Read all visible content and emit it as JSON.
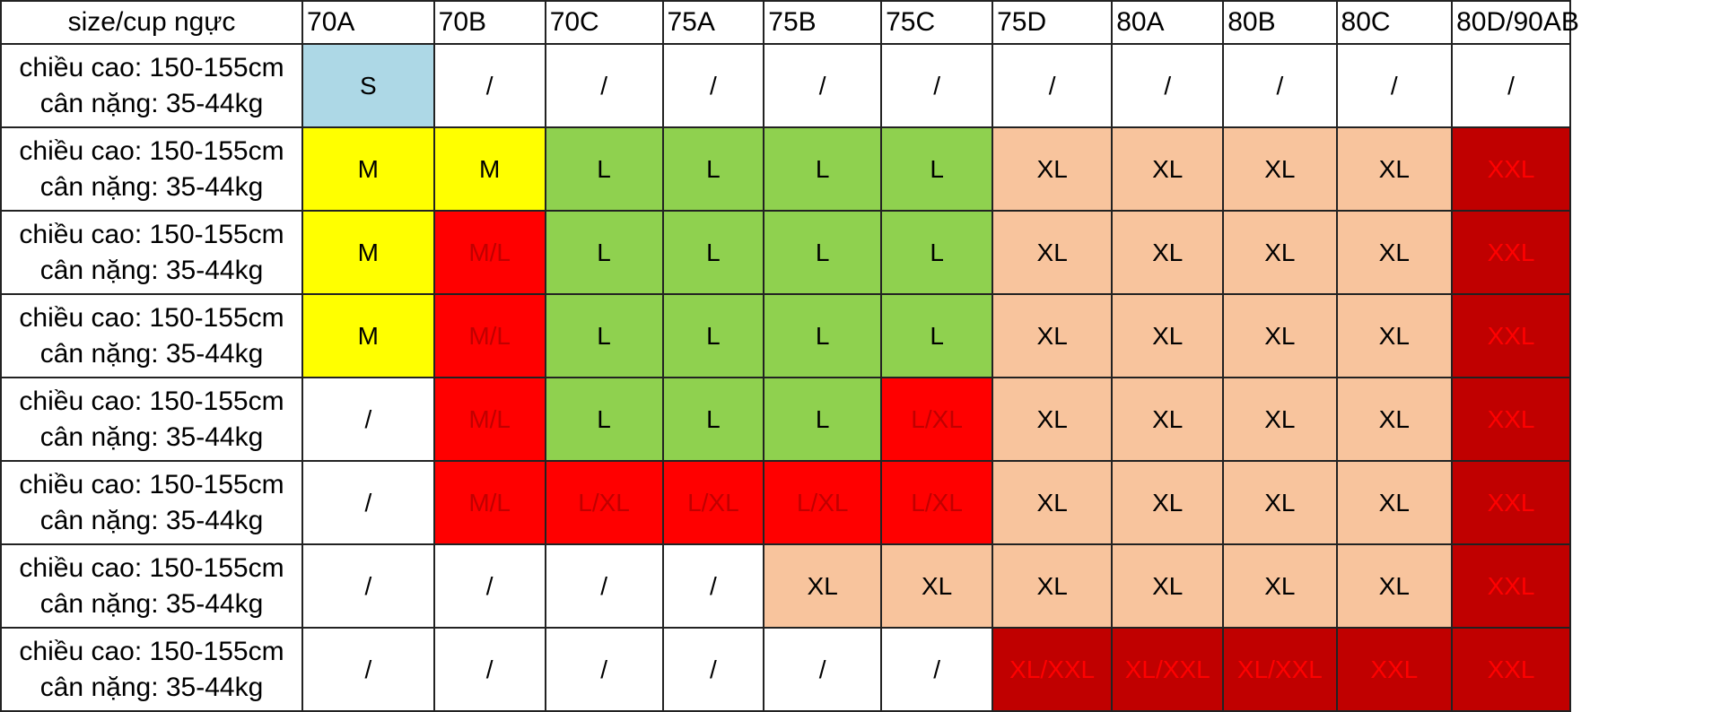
{
  "table": {
    "corner_header": "size/cup ngực",
    "columns": [
      "70A",
      "70B",
      "70C",
      "75A",
      "75B",
      "75C",
      "75D",
      "80A",
      "80B",
      "80C",
      "80D/90AB"
    ],
    "rows": [
      {
        "height_label": "chiều cao: 150-155cm",
        "weight_label": "cân nặng: 35-44kg",
        "cells": [
          "S",
          "/",
          "/",
          "/",
          "/",
          "/",
          "/",
          "/",
          "/",
          "/",
          "/"
        ]
      },
      {
        "height_label": "chiều cao: 150-155cm",
        "weight_label": "cân nặng: 35-44kg",
        "cells": [
          "M",
          "M",
          "L",
          "L",
          "L",
          "L",
          "XL",
          "XL",
          "XL",
          "XL",
          "XXL"
        ]
      },
      {
        "height_label": "chiều cao: 150-155cm",
        "weight_label": "cân nặng: 35-44kg",
        "cells": [
          "M",
          "M/L",
          "L",
          "L",
          "L",
          "L",
          "XL",
          "XL",
          "XL",
          "XL",
          "XXL"
        ]
      },
      {
        "height_label": "chiều cao: 150-155cm",
        "weight_label": "cân nặng: 35-44kg",
        "cells": [
          "M",
          "M/L",
          "L",
          "L",
          "L",
          "L",
          "XL",
          "XL",
          "XL",
          "XL",
          "XXL"
        ]
      },
      {
        "height_label": "chiều cao: 150-155cm",
        "weight_label": "cân nặng: 35-44kg",
        "cells": [
          "/",
          "M/L",
          "L",
          "L",
          "L",
          "L/XL",
          "XL",
          "XL",
          "XL",
          "XL",
          "XXL"
        ]
      },
      {
        "height_label": "chiều cao: 150-155cm",
        "weight_label": "cân nặng: 35-44kg",
        "cells": [
          "/",
          "M/L",
          "L/XL",
          "L/XL",
          "L/XL",
          "L/XL",
          "XL",
          "XL",
          "XL",
          "XL",
          "XXL"
        ]
      },
      {
        "height_label": "chiều cao: 150-155cm",
        "weight_label": "cân nặng: 35-44kg",
        "cells": [
          "/",
          "/",
          "/",
          "/",
          "XL",
          "XL",
          "XL",
          "XL",
          "XL",
          "XL",
          "XXL"
        ]
      },
      {
        "height_label": "chiều cao: 150-155cm",
        "weight_label": "cân nặng: 35-44kg",
        "cells": [
          "/",
          "/",
          "/",
          "/",
          "/",
          "/",
          "XL/XXL",
          "XL/XXL",
          "XL/XXL",
          "XXL",
          "XXL"
        ]
      }
    ]
  },
  "size_colors": {
    "S": {
      "bg": "#add8e6",
      "fg": "#000000"
    },
    "M": {
      "bg": "#ffff00",
      "fg": "#000000"
    },
    "M/L": {
      "bg": "#ff0000",
      "fg": "#c00000"
    },
    "L": {
      "bg": "#8fd14f",
      "fg": "#000000"
    },
    "L/XL": {
      "bg": "#ff0000",
      "fg": "#c00000"
    },
    "XL": {
      "bg": "#f8c49d",
      "fg": "#000000"
    },
    "XL/XXL": {
      "bg": "#c00000",
      "fg": "#ff0000"
    },
    "XXL": {
      "bg": "#c00000",
      "fg": "#ff0000"
    },
    "/": {
      "bg": "#ffffff",
      "fg": "#000000"
    }
  },
  "colors": {
    "grid_line": "#222222",
    "header_bg": "#ffffff"
  }
}
